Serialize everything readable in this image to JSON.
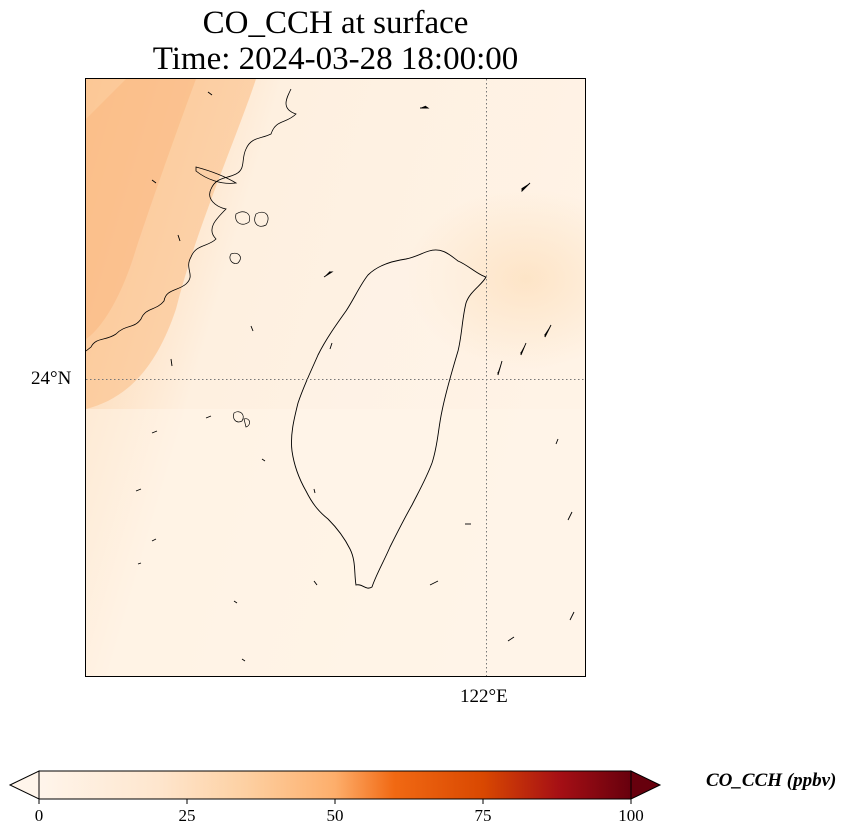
{
  "title": {
    "line1": "CO_CCH at surface",
    "line2": "Time: 2024-03-28 18:00:00"
  },
  "map": {
    "lat_tick_label": "24°N",
    "lon_tick_label": "122°E",
    "gridline_style": "dotted",
    "features": [
      "coastline",
      "wind-vectors",
      "concentration-field"
    ]
  },
  "colorbar": {
    "label": "CO_CCH (ppbv)",
    "min": 0,
    "max": 100,
    "extend": "both",
    "ticks": [
      {
        "value": 0,
        "label": "0"
      },
      {
        "value": 25,
        "label": "25"
      },
      {
        "value": 50,
        "label": "50"
      },
      {
        "value": 75,
        "label": "75"
      },
      {
        "value": 100,
        "label": "100"
      }
    ],
    "colors": [
      "#fff5eb",
      "#fdd0a2",
      "#fd8d3c",
      "#d94801",
      "#a50f15",
      "#67000d"
    ]
  }
}
